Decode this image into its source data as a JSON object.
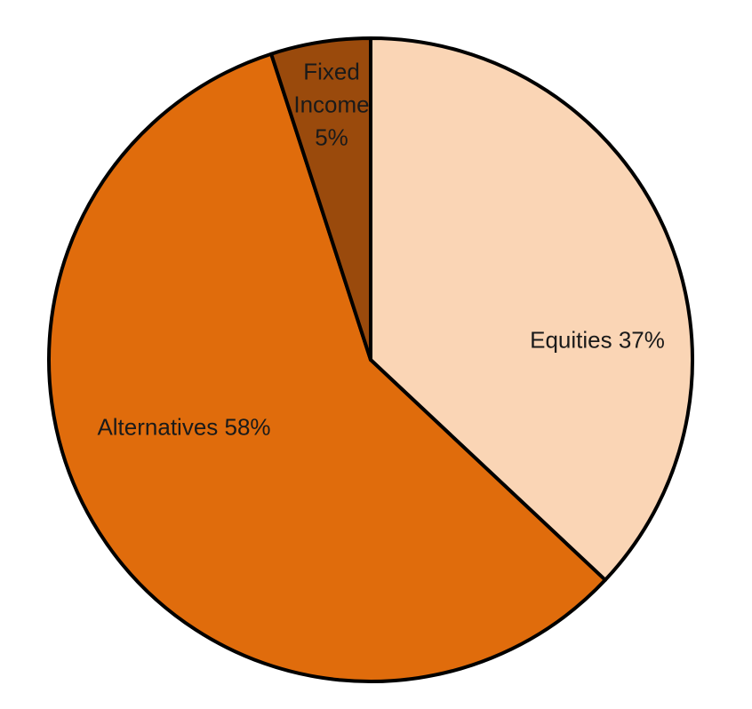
{
  "chart_data": {
    "type": "pie",
    "categories": [
      "Equities",
      "Alternatives",
      "Fixed Income"
    ],
    "values": [
      37,
      58,
      5
    ],
    "value_labels": [
      "37%",
      "58%",
      "5%"
    ],
    "colors": [
      "#fad5b5",
      "#e06c0c",
      "#9a4a0c"
    ]
  }
}
